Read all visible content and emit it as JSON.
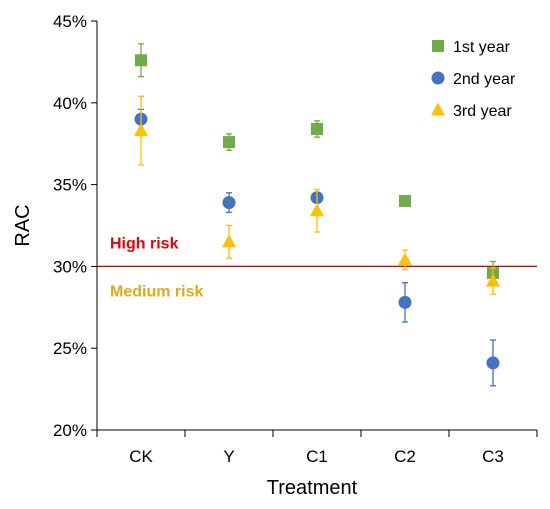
{
  "chart_data": {
    "type": "scatter",
    "categories": [
      "CK",
      "Y",
      "C1",
      "C2",
      "C3"
    ],
    "xlabel": "Treatment",
    "ylabel": "RAC",
    "ylim": [
      20,
      45
    ],
    "yticks": [
      "20%",
      "25%",
      "30%",
      "35%",
      "40%",
      "45%"
    ],
    "series": [
      {
        "name": "1st year",
        "color": "#70ad47",
        "marker": "square",
        "values": [
          42.6,
          37.6,
          38.4,
          34.0,
          29.6
        ],
        "error": [
          1.0,
          0.5,
          0.5,
          0.3,
          0.7
        ]
      },
      {
        "name": "2nd year",
        "color": "#4472c4",
        "marker": "circle",
        "values": [
          39.0,
          33.9,
          34.2,
          27.8,
          24.1
        ],
        "error": [
          0.6,
          0.6,
          0.3,
          1.2,
          1.4
        ]
      },
      {
        "name": "3rd year",
        "color": "#ffc000",
        "marker": "triangle",
        "values": [
          38.3,
          31.5,
          33.4,
          30.4,
          29.1
        ],
        "error": [
          2.1,
          1.0,
          1.3,
          0.6,
          0.8
        ]
      }
    ],
    "threshold": {
      "value": 30,
      "color": "#c00000"
    },
    "annotations": {
      "high": {
        "text": "High risk",
        "color": "#e8000b"
      },
      "medium": {
        "text": "Medium risk",
        "color": "#e6a817"
      }
    },
    "legend_position": "top-right"
  }
}
